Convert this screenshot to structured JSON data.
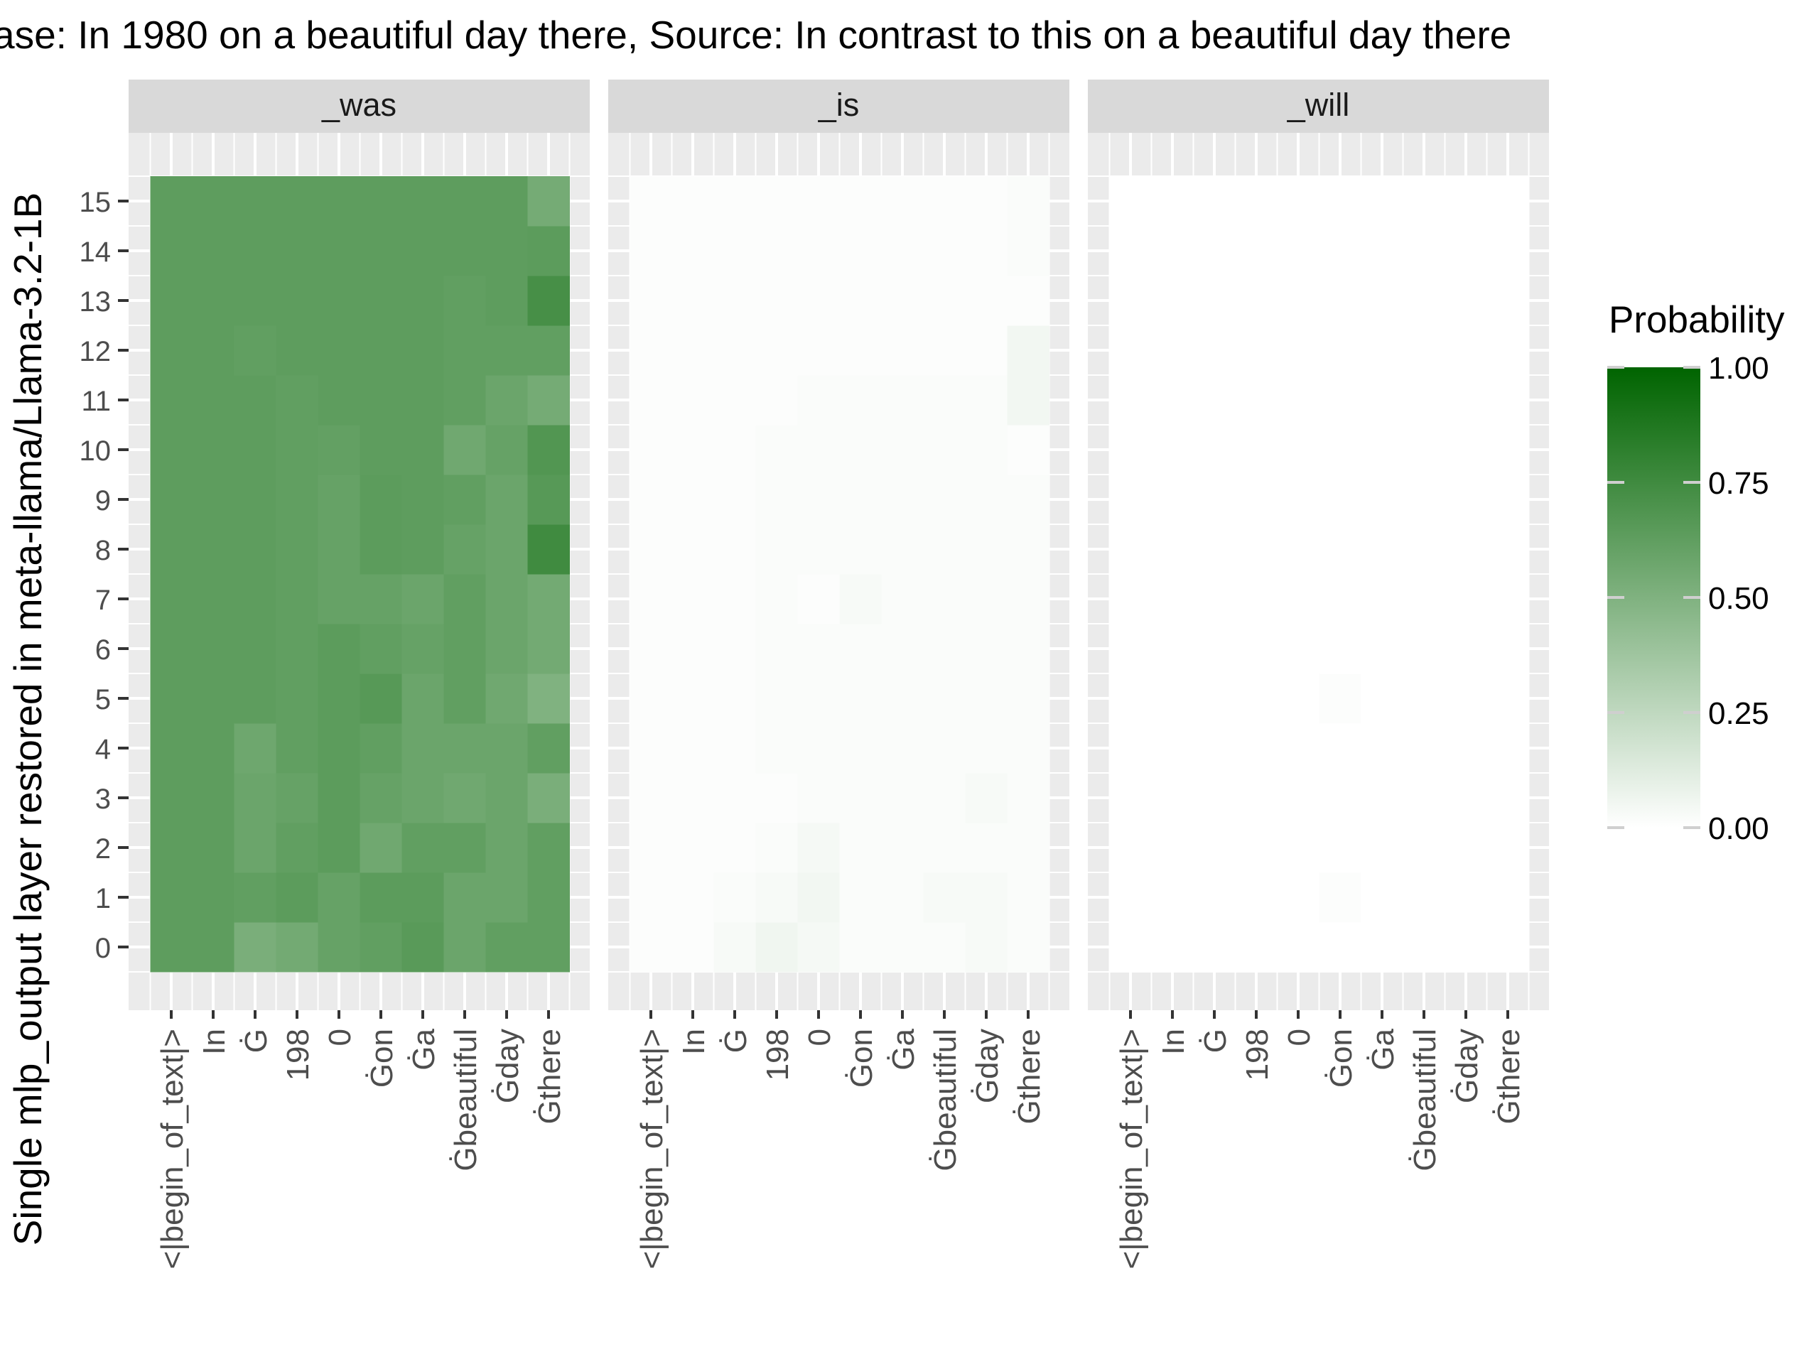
{
  "chart_data": {
    "type": "heatmap",
    "title": "ase: In 1980 on a beautiful day there, Source: In contrast to this on a beautiful day there",
    "ylabel": "Single mlp_output layer restored in meta-llama/Llama-3.2-1B",
    "xlabel": "",
    "legend": {
      "title": "Probability",
      "ticks": [
        "1.00",
        "0.75",
        "0.50",
        "0.25",
        "0.00"
      ],
      "tick_values": [
        1.0,
        0.75,
        0.5,
        0.25,
        0.0
      ],
      "position": "right"
    },
    "colors": {
      "low": "#ffffff",
      "high": "#006400",
      "panel_bg": "#ebebeb",
      "strip_bg": "#d9d9d9",
      "grid": "#ffffff"
    },
    "x_tokens": [
      "<|begin_of_text|>",
      "In",
      "Ġ",
      "198",
      "0",
      "Ġon",
      "Ġa",
      "Ġbeautiful",
      "Ġday",
      "Ġthere"
    ],
    "y_layers": [
      "0",
      "1",
      "2",
      "3",
      "4",
      "5",
      "6",
      "7",
      "8",
      "9",
      "10",
      "11",
      "12",
      "13",
      "14",
      "15"
    ],
    "panels": [
      {
        "name": "_was",
        "values": [
          [
            0.63,
            0.63,
            0.52,
            0.55,
            0.6,
            0.62,
            0.65,
            0.58,
            0.62,
            0.62
          ],
          [
            0.63,
            0.63,
            0.62,
            0.64,
            0.6,
            0.64,
            0.64,
            0.58,
            0.58,
            0.62
          ],
          [
            0.63,
            0.63,
            0.58,
            0.62,
            0.64,
            0.56,
            0.62,
            0.62,
            0.58,
            0.62
          ],
          [
            0.63,
            0.63,
            0.58,
            0.6,
            0.64,
            0.6,
            0.58,
            0.56,
            0.58,
            0.52
          ],
          [
            0.63,
            0.63,
            0.57,
            0.62,
            0.64,
            0.62,
            0.58,
            0.58,
            0.58,
            0.62
          ],
          [
            0.63,
            0.63,
            0.63,
            0.62,
            0.64,
            0.66,
            0.58,
            0.62,
            0.56,
            0.5
          ],
          [
            0.63,
            0.63,
            0.63,
            0.62,
            0.64,
            0.62,
            0.6,
            0.62,
            0.58,
            0.55
          ],
          [
            0.63,
            0.63,
            0.63,
            0.62,
            0.6,
            0.6,
            0.58,
            0.62,
            0.58,
            0.55
          ],
          [
            0.63,
            0.63,
            0.63,
            0.62,
            0.6,
            0.64,
            0.63,
            0.6,
            0.58,
            0.75
          ],
          [
            0.63,
            0.63,
            0.63,
            0.62,
            0.6,
            0.64,
            0.63,
            0.62,
            0.58,
            0.66
          ],
          [
            0.63,
            0.63,
            0.63,
            0.62,
            0.61,
            0.63,
            0.63,
            0.56,
            0.6,
            0.68
          ],
          [
            0.63,
            0.63,
            0.63,
            0.62,
            0.63,
            0.63,
            0.63,
            0.62,
            0.58,
            0.54
          ],
          [
            0.63,
            0.63,
            0.62,
            0.63,
            0.63,
            0.63,
            0.63,
            0.62,
            0.62,
            0.62
          ],
          [
            0.63,
            0.63,
            0.63,
            0.63,
            0.63,
            0.63,
            0.63,
            0.62,
            0.63,
            0.72
          ],
          [
            0.63,
            0.63,
            0.63,
            0.63,
            0.63,
            0.63,
            0.63,
            0.63,
            0.63,
            0.64
          ],
          [
            0.63,
            0.63,
            0.63,
            0.63,
            0.63,
            0.63,
            0.63,
            0.63,
            0.63,
            0.54
          ]
        ]
      },
      {
        "name": "_is",
        "values": [
          [
            0.01,
            0.01,
            0.03,
            0.06,
            0.04,
            0.02,
            0.02,
            0.02,
            0.03,
            0.02
          ],
          [
            0.01,
            0.01,
            0.02,
            0.03,
            0.05,
            0.02,
            0.02,
            0.03,
            0.03,
            0.02
          ],
          [
            0.01,
            0.01,
            0.01,
            0.02,
            0.04,
            0.02,
            0.02,
            0.02,
            0.02,
            0.02
          ],
          [
            0.01,
            0.01,
            0.01,
            0.01,
            0.02,
            0.02,
            0.02,
            0.02,
            0.03,
            0.02
          ],
          [
            0.01,
            0.01,
            0.01,
            0.02,
            0.02,
            0.02,
            0.02,
            0.02,
            0.02,
            0.02
          ],
          [
            0.01,
            0.01,
            0.01,
            0.02,
            0.02,
            0.02,
            0.02,
            0.02,
            0.02,
            0.02
          ],
          [
            0.01,
            0.01,
            0.01,
            0.02,
            0.02,
            0.02,
            0.02,
            0.02,
            0.02,
            0.02
          ],
          [
            0.01,
            0.01,
            0.01,
            0.02,
            0.01,
            0.03,
            0.02,
            0.02,
            0.02,
            0.02
          ],
          [
            0.01,
            0.01,
            0.01,
            0.02,
            0.02,
            0.02,
            0.02,
            0.02,
            0.02,
            0.02
          ],
          [
            0.01,
            0.01,
            0.01,
            0.02,
            0.02,
            0.02,
            0.02,
            0.02,
            0.02,
            0.02
          ],
          [
            0.01,
            0.01,
            0.01,
            0.02,
            0.02,
            0.02,
            0.02,
            0.02,
            0.02,
            0.01
          ],
          [
            0.01,
            0.01,
            0.01,
            0.01,
            0.02,
            0.02,
            0.02,
            0.02,
            0.02,
            0.05
          ],
          [
            0.01,
            0.01,
            0.01,
            0.01,
            0.01,
            0.01,
            0.01,
            0.01,
            0.01,
            0.05
          ],
          [
            0.01,
            0.01,
            0.01,
            0.01,
            0.01,
            0.01,
            0.01,
            0.01,
            0.01,
            0.01
          ],
          [
            0.01,
            0.01,
            0.01,
            0.01,
            0.01,
            0.01,
            0.01,
            0.01,
            0.01,
            0.02
          ],
          [
            0.01,
            0.01,
            0.01,
            0.01,
            0.01,
            0.01,
            0.01,
            0.01,
            0.01,
            0.02
          ]
        ]
      },
      {
        "name": "_will",
        "values": [
          [
            0.0,
            0.0,
            0.0,
            0.0,
            0.0,
            0.0,
            0.0,
            0.0,
            0.0,
            0.0
          ],
          [
            0.0,
            0.0,
            0.0,
            0.0,
            0.0,
            0.01,
            0.0,
            0.0,
            0.0,
            0.0
          ],
          [
            0.0,
            0.0,
            0.0,
            0.0,
            0.0,
            0.0,
            0.0,
            0.0,
            0.0,
            0.0
          ],
          [
            0.0,
            0.0,
            0.0,
            0.0,
            0.0,
            0.0,
            0.0,
            0.0,
            0.0,
            0.0
          ],
          [
            0.0,
            0.0,
            0.0,
            0.0,
            0.0,
            0.0,
            0.0,
            0.0,
            0.0,
            0.0
          ],
          [
            0.0,
            0.0,
            0.0,
            0.0,
            0.0,
            0.01,
            0.0,
            0.0,
            0.0,
            0.0
          ],
          [
            0.0,
            0.0,
            0.0,
            0.0,
            0.0,
            0.0,
            0.0,
            0.0,
            0.0,
            0.0
          ],
          [
            0.0,
            0.0,
            0.0,
            0.0,
            0.0,
            0.0,
            0.0,
            0.0,
            0.0,
            0.0
          ],
          [
            0.0,
            0.0,
            0.0,
            0.0,
            0.0,
            0.0,
            0.0,
            0.0,
            0.0,
            0.0
          ],
          [
            0.0,
            0.0,
            0.0,
            0.0,
            0.0,
            0.0,
            0.0,
            0.0,
            0.0,
            0.0
          ],
          [
            0.0,
            0.0,
            0.0,
            0.0,
            0.0,
            0.0,
            0.0,
            0.0,
            0.0,
            0.0
          ],
          [
            0.0,
            0.0,
            0.0,
            0.0,
            0.0,
            0.0,
            0.0,
            0.0,
            0.0,
            0.0
          ],
          [
            0.0,
            0.0,
            0.0,
            0.0,
            0.0,
            0.0,
            0.0,
            0.0,
            0.0,
            0.0
          ],
          [
            0.0,
            0.0,
            0.0,
            0.0,
            0.0,
            0.0,
            0.0,
            0.0,
            0.0,
            0.0
          ],
          [
            0.0,
            0.0,
            0.0,
            0.0,
            0.0,
            0.0,
            0.0,
            0.0,
            0.0,
            0.0
          ],
          [
            0.0,
            0.0,
            0.0,
            0.0,
            0.0,
            0.0,
            0.0,
            0.0,
            0.0,
            0.0
          ]
        ]
      }
    ]
  }
}
